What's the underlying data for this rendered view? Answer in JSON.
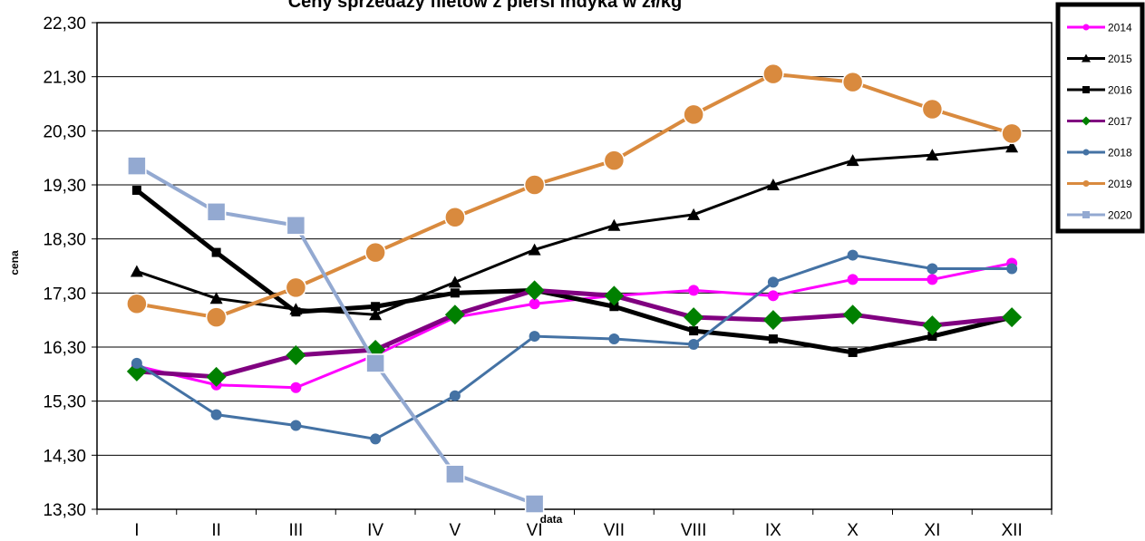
{
  "chart_data": {
    "type": "line",
    "title": "Ceny sprzedaży filetów z  piersi indyka w zł/kg",
    "xlabel": "data",
    "ylabel": "cena",
    "categories": [
      "I",
      "II",
      "III",
      "IV",
      "V",
      "VI",
      "VII",
      "VIII",
      "IX",
      "X",
      "XI",
      "XII"
    ],
    "ylim": [
      13.3,
      22.3
    ],
    "yticks": [
      "13,30",
      "14,30",
      "15,30",
      "16,30",
      "17,30",
      "18,30",
      "19,30",
      "20,30",
      "21,30",
      "22,30"
    ],
    "grid": true,
    "legend_position": "top-right",
    "series": [
      {
        "name": "2014",
        "color": "#ff00ff",
        "marker": "circle",
        "width": 3,
        "values": [
          15.95,
          15.6,
          15.55,
          16.15,
          16.85,
          17.1,
          17.25,
          17.35,
          17.25,
          17.55,
          17.55,
          17.85
        ]
      },
      {
        "name": "2015",
        "color": "#000000",
        "marker": "triangle",
        "width": 3,
        "values": [
          17.7,
          17.2,
          17.0,
          16.9,
          17.5,
          18.1,
          18.55,
          18.75,
          19.3,
          19.75,
          19.85,
          20.0
        ]
      },
      {
        "name": "2016",
        "color": "#000000",
        "marker": "square",
        "width": 5,
        "values": [
          19.2,
          18.05,
          16.95,
          17.05,
          17.3,
          17.35,
          17.05,
          16.6,
          16.45,
          16.2,
          16.5,
          16.85
        ]
      },
      {
        "name": "2017",
        "color": "#800080",
        "marker": "diamond",
        "markerColor": "#008000",
        "width": 5,
        "values": [
          15.85,
          15.75,
          16.15,
          16.25,
          16.9,
          17.35,
          17.25,
          16.85,
          16.8,
          16.9,
          16.7,
          16.85
        ]
      },
      {
        "name": "2018",
        "color": "#4472a4",
        "marker": "circle",
        "width": 3,
        "values": [
          16.0,
          15.05,
          14.85,
          14.6,
          15.4,
          16.5,
          16.45,
          16.35,
          17.5,
          18.0,
          17.75,
          17.75
        ]
      },
      {
        "name": "2019",
        "color": "#d98a3e",
        "marker": "circle-large",
        "width": 4,
        "values": [
          17.1,
          16.85,
          17.4,
          18.05,
          18.7,
          19.3,
          19.75,
          20.6,
          21.35,
          21.2,
          20.7,
          20.25
        ]
      },
      {
        "name": "2020",
        "color": "#93a9d1",
        "marker": "square-large",
        "width": 4,
        "values": [
          19.65,
          18.8,
          18.55,
          16.0,
          13.95,
          13.4,
          null,
          null,
          null,
          null,
          null,
          null
        ]
      }
    ]
  }
}
